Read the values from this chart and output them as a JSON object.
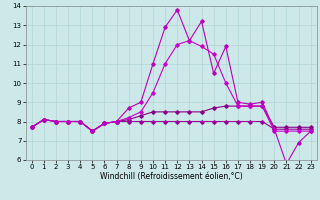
{
  "xlabel": "Windchill (Refroidissement éolien,°C)",
  "background_color": "#cde8e8",
  "line_color1": "#990099",
  "line_color2": "#bb00bb",
  "line_color3": "#880088",
  "line_color4": "#cc00cc",
  "xlim": [
    -0.5,
    23.5
  ],
  "ylim": [
    6,
    14
  ],
  "xticks": [
    0,
    1,
    2,
    3,
    4,
    5,
    6,
    7,
    8,
    9,
    10,
    11,
    12,
    13,
    14,
    15,
    16,
    17,
    18,
    19,
    20,
    21,
    22,
    23
  ],
  "yticks": [
    6,
    7,
    8,
    9,
    10,
    11,
    12,
    13,
    14
  ],
  "series1_y": [
    7.7,
    8.1,
    8.0,
    8.0,
    8.0,
    7.5,
    7.9,
    8.0,
    8.0,
    8.0,
    8.0,
    8.0,
    8.0,
    8.0,
    8.0,
    8.0,
    8.0,
    8.0,
    8.0,
    8.0,
    7.6,
    7.6,
    7.6,
    7.6
  ],
  "series2_y": [
    7.7,
    8.1,
    8.0,
    8.0,
    8.0,
    7.5,
    7.9,
    8.0,
    8.1,
    8.3,
    8.5,
    8.5,
    8.5,
    8.5,
    8.5,
    8.7,
    8.8,
    8.8,
    8.8,
    8.8,
    7.7,
    7.7,
    7.7,
    7.7
  ],
  "series3_y": [
    7.7,
    8.1,
    8.0,
    8.0,
    8.0,
    7.5,
    7.9,
    8.0,
    8.7,
    9.0,
    11.0,
    12.9,
    13.8,
    12.2,
    13.2,
    10.5,
    11.9,
    9.0,
    8.9,
    9.0,
    7.6,
    5.8,
    6.9,
    7.5
  ],
  "series4_y": [
    7.7,
    8.1,
    8.0,
    8.0,
    8.0,
    7.5,
    7.9,
    8.0,
    8.2,
    8.5,
    9.5,
    11.0,
    12.0,
    12.2,
    11.9,
    11.5,
    10.0,
    8.8,
    8.8,
    8.8,
    7.5,
    7.5,
    7.5,
    7.5
  ],
  "grid_color": "#b0d4d4",
  "marker": "D",
  "markersize": 1.8,
  "linewidth": 0.8,
  "tick_fontsize": 5.0,
  "xlabel_fontsize": 5.5
}
